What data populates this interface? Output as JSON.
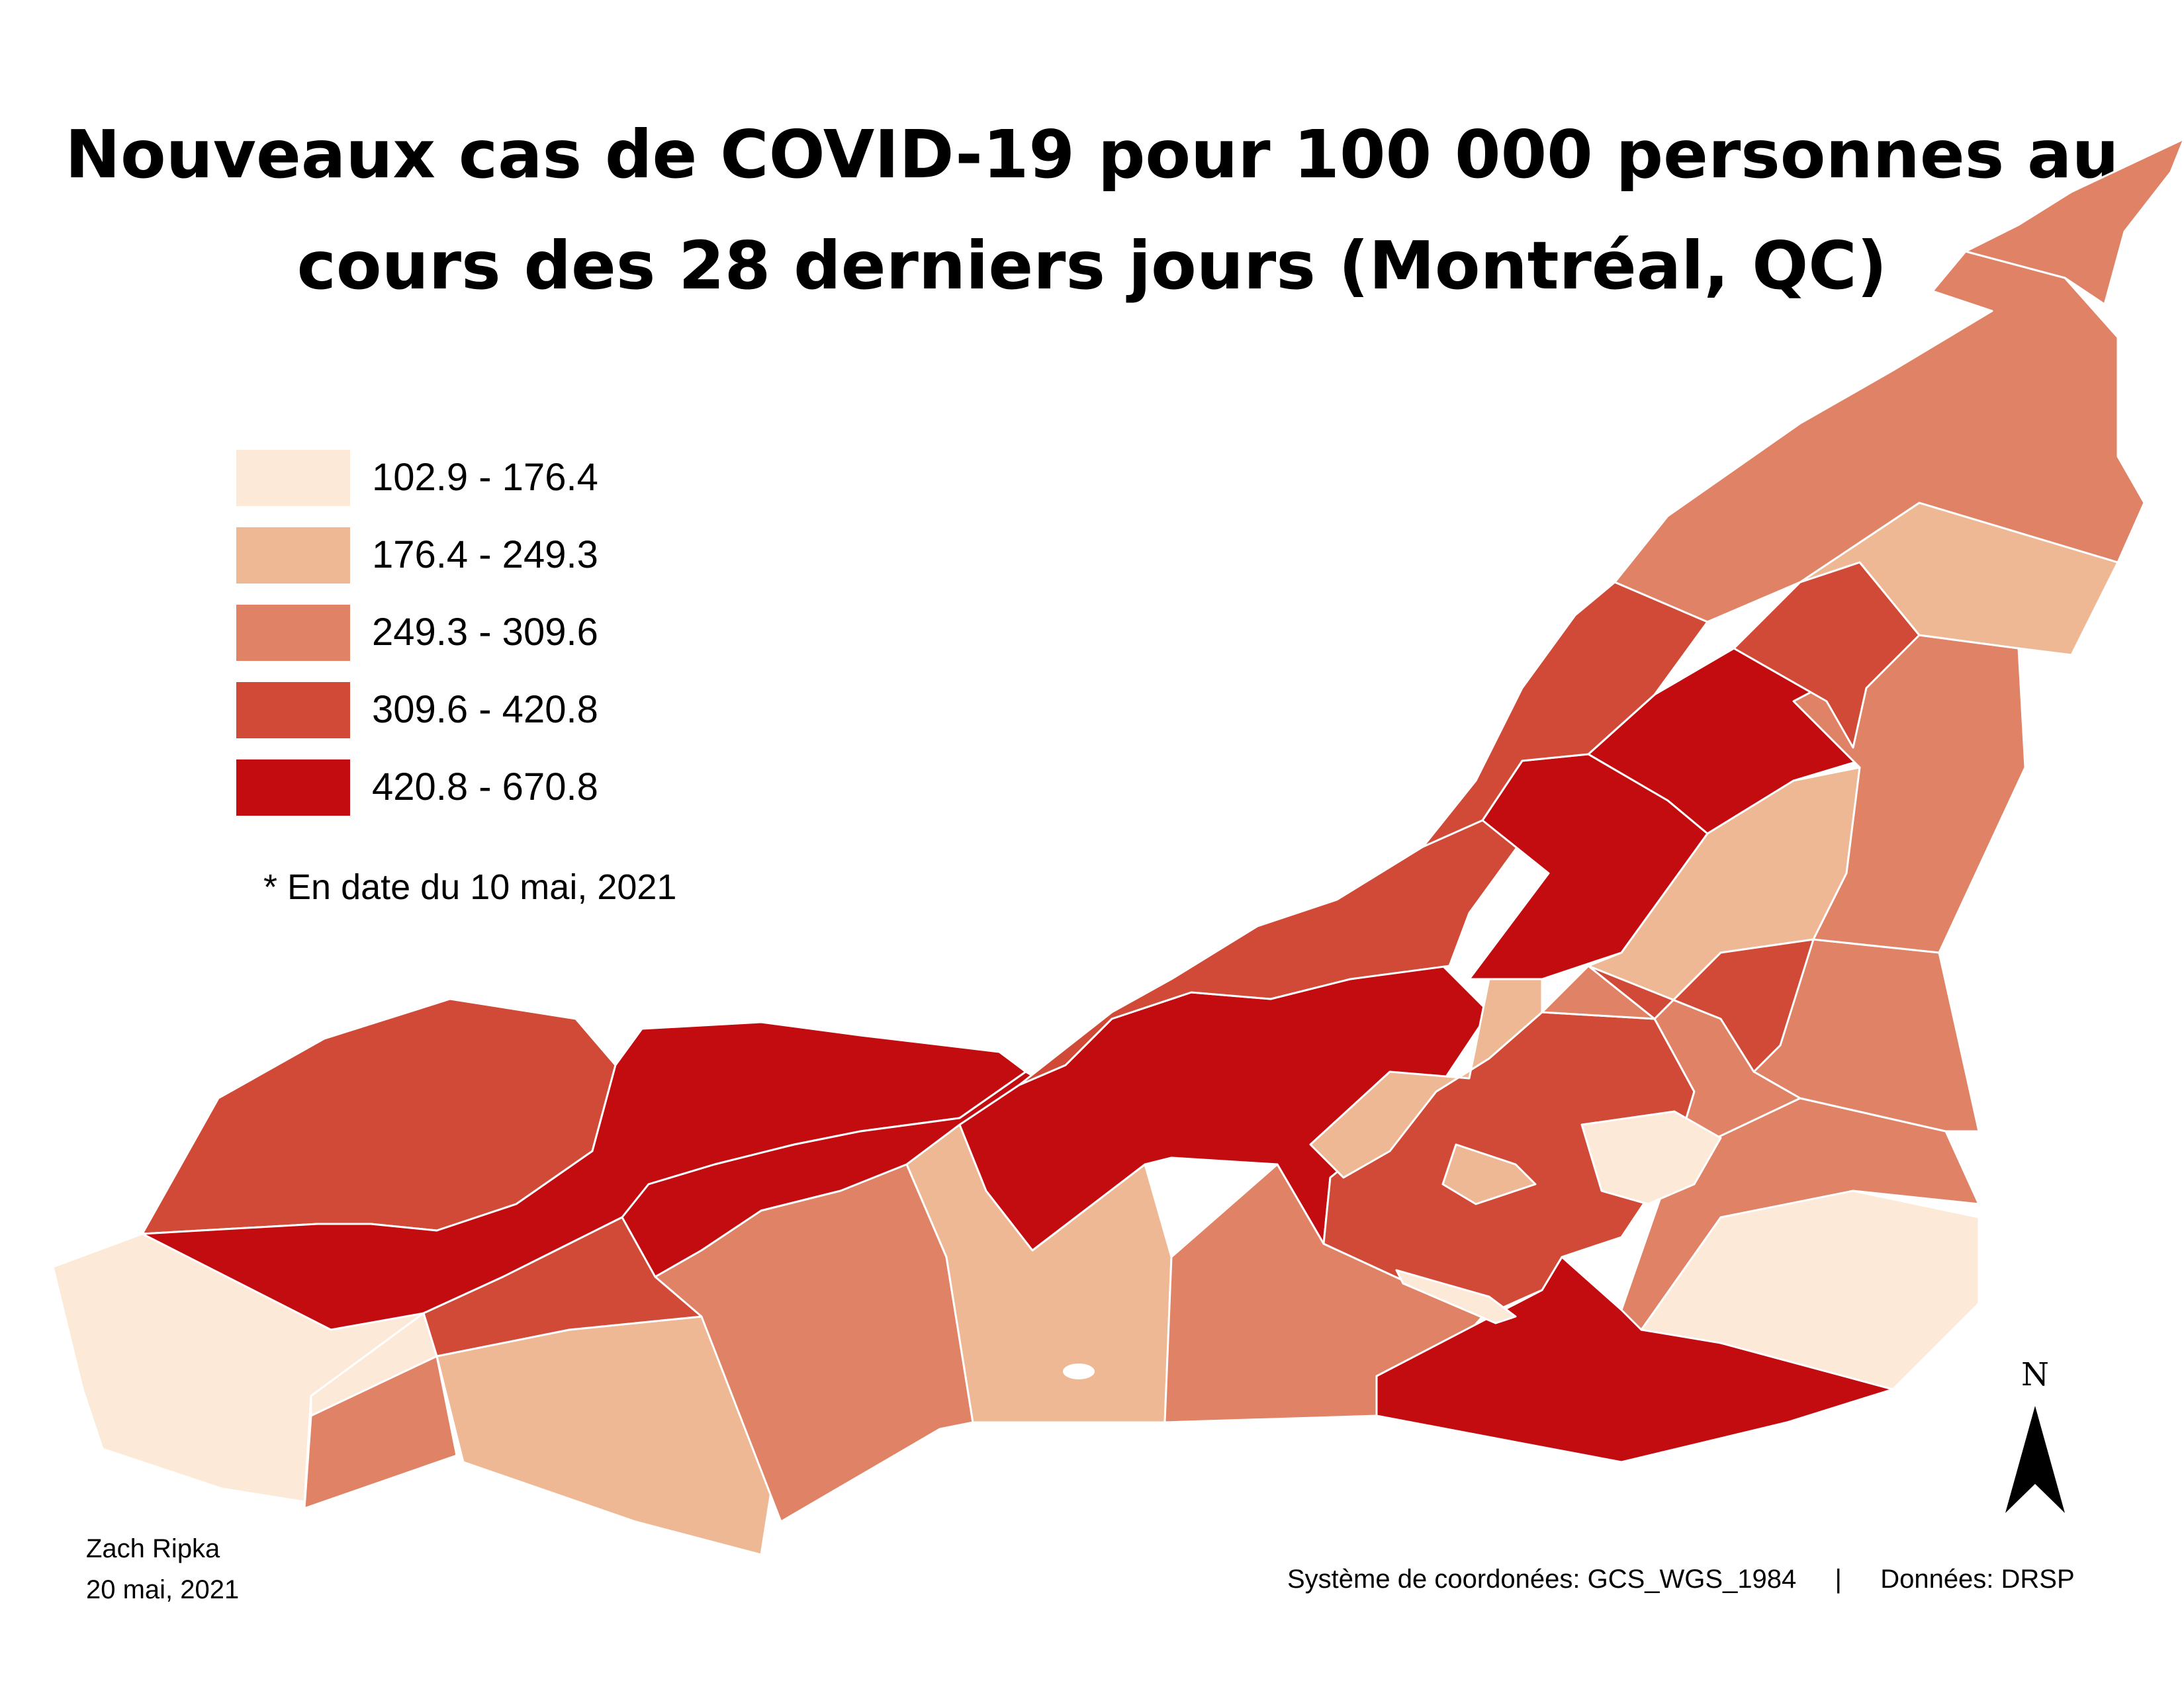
{
  "title": {
    "line1": "Nouveaux cas de COVID-19 pour 100 000 personnes au",
    "line2": "cours des 28 derniers jours (Montréal, QC)"
  },
  "legend": {
    "classes": [
      {
        "range": "102.9 - 176.4",
        "color": "#fde9d7"
      },
      {
        "range": "176.4 - 249.3",
        "color": "#efb895"
      },
      {
        "range": "249.3 - 309.6",
        "color": "#e08265"
      },
      {
        "range": "309.6 - 420.8",
        "color": "#d04a37"
      },
      {
        "range": "420.8 - 670.8",
        "color": "#c20c0f"
      }
    ]
  },
  "note": "* En date du 10 mai, 2021",
  "author": {
    "name": "Zach Ripka",
    "date": "20 mai, 2021"
  },
  "footer": {
    "coordinate_system": "Système de coordonées: GCS_WGS_1984",
    "separator": "|",
    "data_source": "Données: DRSP"
  },
  "north_arrow": {
    "label": "N"
  },
  "colors": {
    "border": "#ffffff",
    "text": "#000000"
  }
}
